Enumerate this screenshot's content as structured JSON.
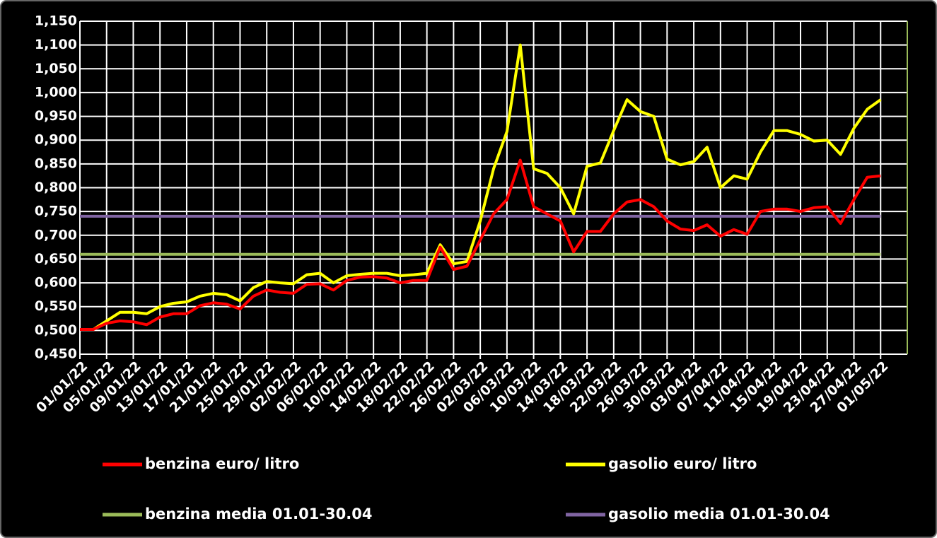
{
  "chart_data": {
    "type": "line",
    "categories": [
      "01/01/22",
      null,
      "05/01/22",
      null,
      "09/01/22",
      null,
      "13/01/22",
      null,
      "17/01/22",
      null,
      "21/01/22",
      null,
      "25/01/22",
      null,
      "29/01/22",
      null,
      "02/02/22",
      null,
      "06/02/22",
      null,
      "10/02/22",
      null,
      "14/02/22",
      null,
      "18/02/22",
      null,
      "22/02/22",
      null,
      "26/02/22",
      null,
      "02/03/22",
      null,
      "06/03/22",
      null,
      "10/03/22",
      null,
      "14/03/22",
      null,
      "18/03/22",
      null,
      "22/03/22",
      null,
      "26/03/22",
      null,
      "30/03/22",
      null,
      "03/04/22",
      null,
      "07/04/22",
      null,
      "11/04/22",
      null,
      "15/04/22",
      null,
      "19/04/22",
      null,
      "23/04/22",
      null,
      "27/04/22",
      null,
      "01/05/22"
    ],
    "series": [
      {
        "name": "benzina euro/ litro",
        "color": "#ff0000",
        "values": [
          0.502,
          0.502,
          0.515,
          0.52,
          0.518,
          0.512,
          0.528,
          0.535,
          0.535,
          0.552,
          0.558,
          0.555,
          0.545,
          0.572,
          0.585,
          0.58,
          0.578,
          0.597,
          0.598,
          0.585,
          0.605,
          0.612,
          0.613,
          0.61,
          0.6,
          0.605,
          0.605,
          0.675,
          0.628,
          0.635,
          0.69,
          0.745,
          0.775,
          0.858,
          0.76,
          0.745,
          0.73,
          0.665,
          0.708,
          0.708,
          0.745,
          0.77,
          0.775,
          0.76,
          0.73,
          0.713,
          0.71,
          0.722,
          0.698,
          0.712,
          0.702,
          0.75,
          0.755,
          0.755,
          0.75,
          0.758,
          0.76,
          0.725,
          0.775,
          0.822,
          0.825
        ]
      },
      {
        "name": "gasolio euro/ litro",
        "color": "#ffff00",
        "values": [
          0.502,
          0.502,
          0.52,
          0.538,
          0.538,
          0.535,
          0.55,
          0.557,
          0.56,
          0.572,
          0.578,
          0.575,
          0.562,
          0.59,
          0.603,
          0.6,
          0.598,
          0.617,
          0.62,
          0.6,
          0.615,
          0.618,
          0.62,
          0.62,
          0.615,
          0.617,
          0.62,
          0.68,
          0.64,
          0.645,
          0.73,
          0.84,
          0.918,
          1.1,
          0.84,
          0.83,
          0.8,
          0.745,
          0.845,
          0.852,
          0.92,
          0.985,
          0.96,
          0.95,
          0.86,
          0.848,
          0.855,
          0.885,
          0.8,
          0.825,
          0.818,
          0.875,
          0.92,
          0.92,
          0.912,
          0.898,
          0.9,
          0.87,
          0.925,
          0.965,
          0.985
        ]
      },
      {
        "name": "benzina media 01.01-30.04",
        "color": "#9bbb59",
        "values": [
          0.66,
          0.66,
          0.66,
          0.66,
          0.66,
          0.66,
          0.66,
          0.66,
          0.66,
          0.66,
          0.66,
          0.66,
          0.66,
          0.66,
          0.66,
          0.66,
          0.66,
          0.66,
          0.66,
          0.66,
          0.66,
          0.66,
          0.66,
          0.66,
          0.66,
          0.66,
          0.66,
          0.66,
          0.66,
          0.66,
          0.66,
          0.66,
          0.66,
          0.66,
          0.66,
          0.66,
          0.66,
          0.66,
          0.66,
          0.66,
          0.66,
          0.66,
          0.66,
          0.66,
          0.66,
          0.66,
          0.66,
          0.66,
          0.66,
          0.66,
          0.66,
          0.66,
          0.66,
          0.66,
          0.66,
          0.66,
          0.66,
          0.66,
          0.66,
          0.66,
          0.66
        ]
      },
      {
        "name": "gasolio media 01.01-30.04",
        "color": "#8064a2",
        "values": [
          0.74,
          0.74,
          0.74,
          0.74,
          0.74,
          0.74,
          0.74,
          0.74,
          0.74,
          0.74,
          0.74,
          0.74,
          0.74,
          0.74,
          0.74,
          0.74,
          0.74,
          0.74,
          0.74,
          0.74,
          0.74,
          0.74,
          0.74,
          0.74,
          0.74,
          0.74,
          0.74,
          0.74,
          0.74,
          0.74,
          0.74,
          0.74,
          0.74,
          0.74,
          0.74,
          0.74,
          0.74,
          0.74,
          0.74,
          0.74,
          0.74,
          0.74,
          0.74,
          0.74,
          0.74,
          0.74,
          0.74,
          0.74,
          0.74,
          0.74,
          0.74,
          0.74,
          0.74,
          0.74,
          0.74,
          0.74,
          0.74,
          0.74,
          0.74,
          0.74,
          0.74
        ]
      }
    ],
    "ylim": [
      0.45,
      1.15
    ],
    "yticks": [
      {
        "value": 0.45,
        "label": "0,450"
      },
      {
        "value": 0.5,
        "label": "0,500"
      },
      {
        "value": 0.55,
        "label": "0,550"
      },
      {
        "value": 0.6,
        "label": "0,600"
      },
      {
        "value": 0.65,
        "label": "0,650"
      },
      {
        "value": 0.7,
        "label": "0,700"
      },
      {
        "value": 0.75,
        "label": "0,750"
      },
      {
        "value": 0.8,
        "label": "0,800"
      },
      {
        "value": 0.85,
        "label": "0,850"
      },
      {
        "value": 0.9,
        "label": "0,900"
      },
      {
        "value": 0.95,
        "label": "0,950"
      },
      {
        "value": 1.0,
        "label": "1,000"
      },
      {
        "value": 1.05,
        "label": "1,050"
      },
      {
        "value": 1.1,
        "label": "1,100"
      },
      {
        "value": 1.15,
        "label": "1,150"
      }
    ],
    "grid": true
  }
}
